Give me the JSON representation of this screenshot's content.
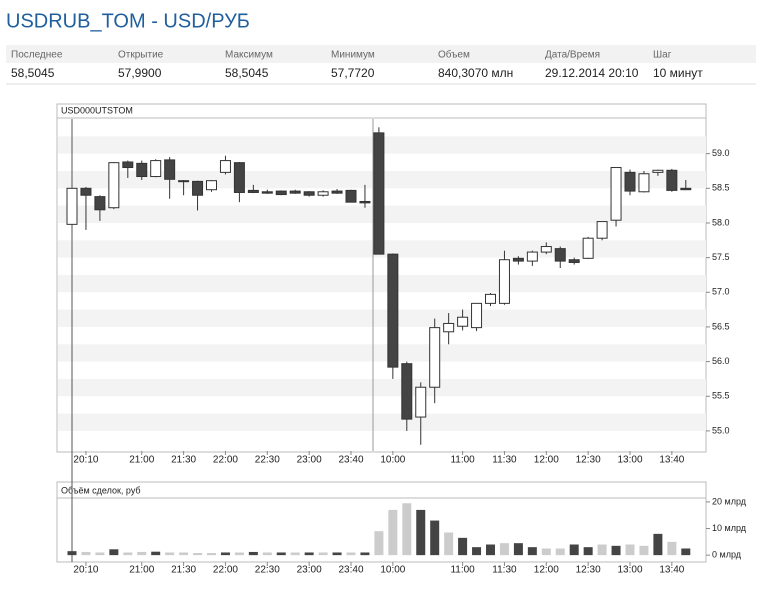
{
  "header": {
    "title": "USDRUB_TOM - USD/РУБ",
    "table": {
      "columns": [
        "Последнее",
        "Открытие",
        "Максимум",
        "Минимум",
        "Объем",
        "Дата/Время",
        "Шаг"
      ],
      "values": [
        "58,5045",
        "57,9900",
        "58,5045",
        "57,7720",
        "840,3070 млн",
        "29.12.2014 20:10",
        "10 минут"
      ]
    }
  },
  "chart_data": [
    {
      "type": "candlestick",
      "title": "USD000UTSTOM",
      "categories": [
        null,
        "20:10",
        null,
        null,
        null,
        "21:00",
        null,
        null,
        "21:30",
        null,
        null,
        "22:00",
        null,
        null,
        "22:30",
        null,
        null,
        "23:00",
        null,
        null,
        "23:40",
        null,
        null,
        "10:00",
        null,
        null,
        null,
        null,
        "11:00",
        null,
        null,
        "11:30",
        null,
        null,
        "12:00",
        null,
        null,
        "12:30",
        null,
        null,
        "13:00",
        null,
        null,
        "13:40",
        null
      ],
      "open": [
        57.98,
        58.5,
        58.38,
        58.22,
        58.88,
        58.86,
        58.67,
        58.91,
        58.61,
        58.6,
        58.48,
        58.73,
        58.87,
        58.47,
        58.45,
        58.46,
        58.46,
        58.45,
        58.4,
        58.46,
        58.47,
        58.31,
        59.3,
        57.55,
        55.97,
        55.2,
        55.63,
        56.43,
        56.51,
        56.49,
        56.84,
        56.84,
        57.49,
        57.45,
        57.58,
        57.63,
        57.47,
        57.49,
        57.78,
        58.04,
        58.73,
        58.45,
        58.73,
        58.76,
        58.5
      ],
      "high": [
        58.5,
        58.52,
        58.4,
        58.88,
        58.9,
        58.9,
        58.92,
        58.95,
        58.62,
        58.61,
        58.62,
        58.97,
        58.88,
        58.55,
        58.48,
        58.47,
        58.48,
        58.46,
        58.47,
        58.49,
        58.48,
        58.55,
        59.38,
        57.56,
        56.0,
        55.7,
        56.62,
        56.7,
        56.75,
        56.84,
        56.99,
        57.6,
        57.52,
        57.6,
        57.72,
        57.66,
        57.5,
        57.8,
        58.02,
        58.8,
        58.77,
        58.75,
        58.77,
        58.78,
        58.62
      ],
      "low": [
        57.97,
        57.9,
        58.03,
        58.2,
        58.65,
        58.62,
        58.66,
        58.35,
        58.4,
        58.18,
        58.45,
        58.7,
        58.3,
        58.43,
        58.42,
        58.4,
        58.42,
        58.38,
        58.38,
        58.42,
        58.3,
        58.22,
        57.55,
        55.75,
        55.0,
        54.8,
        55.4,
        56.25,
        56.45,
        56.44,
        56.8,
        56.82,
        57.4,
        57.38,
        57.55,
        57.35,
        57.4,
        57.48,
        57.75,
        57.95,
        58.4,
        58.44,
        58.68,
        58.45,
        58.48
      ],
      "close": [
        58.5,
        58.4,
        58.19,
        58.87,
        58.8,
        58.67,
        58.9,
        58.63,
        58.6,
        58.4,
        58.61,
        58.9,
        58.44,
        58.44,
        58.43,
        58.41,
        58.43,
        58.4,
        58.45,
        58.43,
        58.3,
        58.29,
        57.55,
        55.92,
        55.17,
        55.63,
        56.49,
        56.55,
        56.64,
        56.84,
        56.97,
        57.47,
        57.45,
        57.58,
        57.66,
        57.45,
        57.43,
        57.78,
        58.02,
        58.8,
        58.46,
        58.71,
        58.76,
        58.47,
        58.48
      ],
      "up_color": "#ffffff",
      "down_color": "#444444",
      "ylim": [
        54.71,
        59.5
      ],
      "yticks": [
        {
          "value": 55,
          "label": "55.0"
        },
        55.5,
        {
          "value": 56,
          "label": "56.0"
        },
        56.5,
        {
          "value": 57,
          "label": "57.0"
        },
        57.5,
        {
          "value": 58,
          "label": "58.0"
        },
        58.5,
        {
          "value": 59,
          "label": "59.0"
        }
      ]
    },
    {
      "type": "bar",
      "title": "Объём сделок, руб",
      "values": [
        1.5,
        1.2,
        1.0,
        2.2,
        1.0,
        1.2,
        1.3,
        1.0,
        1.0,
        0.8,
        0.8,
        1.0,
        1.0,
        1.2,
        1.0,
        1.0,
        1.0,
        1.0,
        1.0,
        1.0,
        1.0,
        1.0,
        9.0,
        17.0,
        19.5,
        17.0,
        13.0,
        8.5,
        6.5,
        3.0,
        4.0,
        4.5,
        4.5,
        3.0,
        2.5,
        2.5,
        4.0,
        3.0,
        4.0,
        3.5,
        4.0,
        3.5,
        8.0,
        5.0,
        2.5
      ],
      "colors": [
        "#444444",
        "#cccccc",
        "#cccccc",
        "#444444",
        "#cccccc",
        "#cccccc",
        "#444444",
        "#cccccc",
        "#cccccc",
        "#cccccc",
        "#cccccc",
        "#444444",
        "#cccccc",
        "#444444",
        "#cccccc",
        "#444444",
        "#cccccc",
        "#444444",
        "#cccccc",
        "#444444",
        "#cccccc",
        "#444444",
        "#cccccc",
        "#cccccc",
        "#cccccc",
        "#444444",
        "#444444",
        "#cccccc",
        "#444444",
        "#444444",
        "#444444",
        "#cccccc",
        "#444444",
        "#444444",
        "#cccccc",
        "#cccccc",
        "#444444",
        "#444444",
        "#cccccc",
        "#444444",
        "#cccccc",
        "#cccccc",
        "#444444",
        "#cccccc",
        "#444444"
      ],
      "ylim": [
        -2.2,
        21.1
      ],
      "yticks": [
        {
          "value": 0,
          "label": "0 млрд"
        },
        {
          "value": 10,
          "label": "10 млрд"
        },
        {
          "value": 20,
          "label": "20 млрд"
        }
      ]
    }
  ]
}
